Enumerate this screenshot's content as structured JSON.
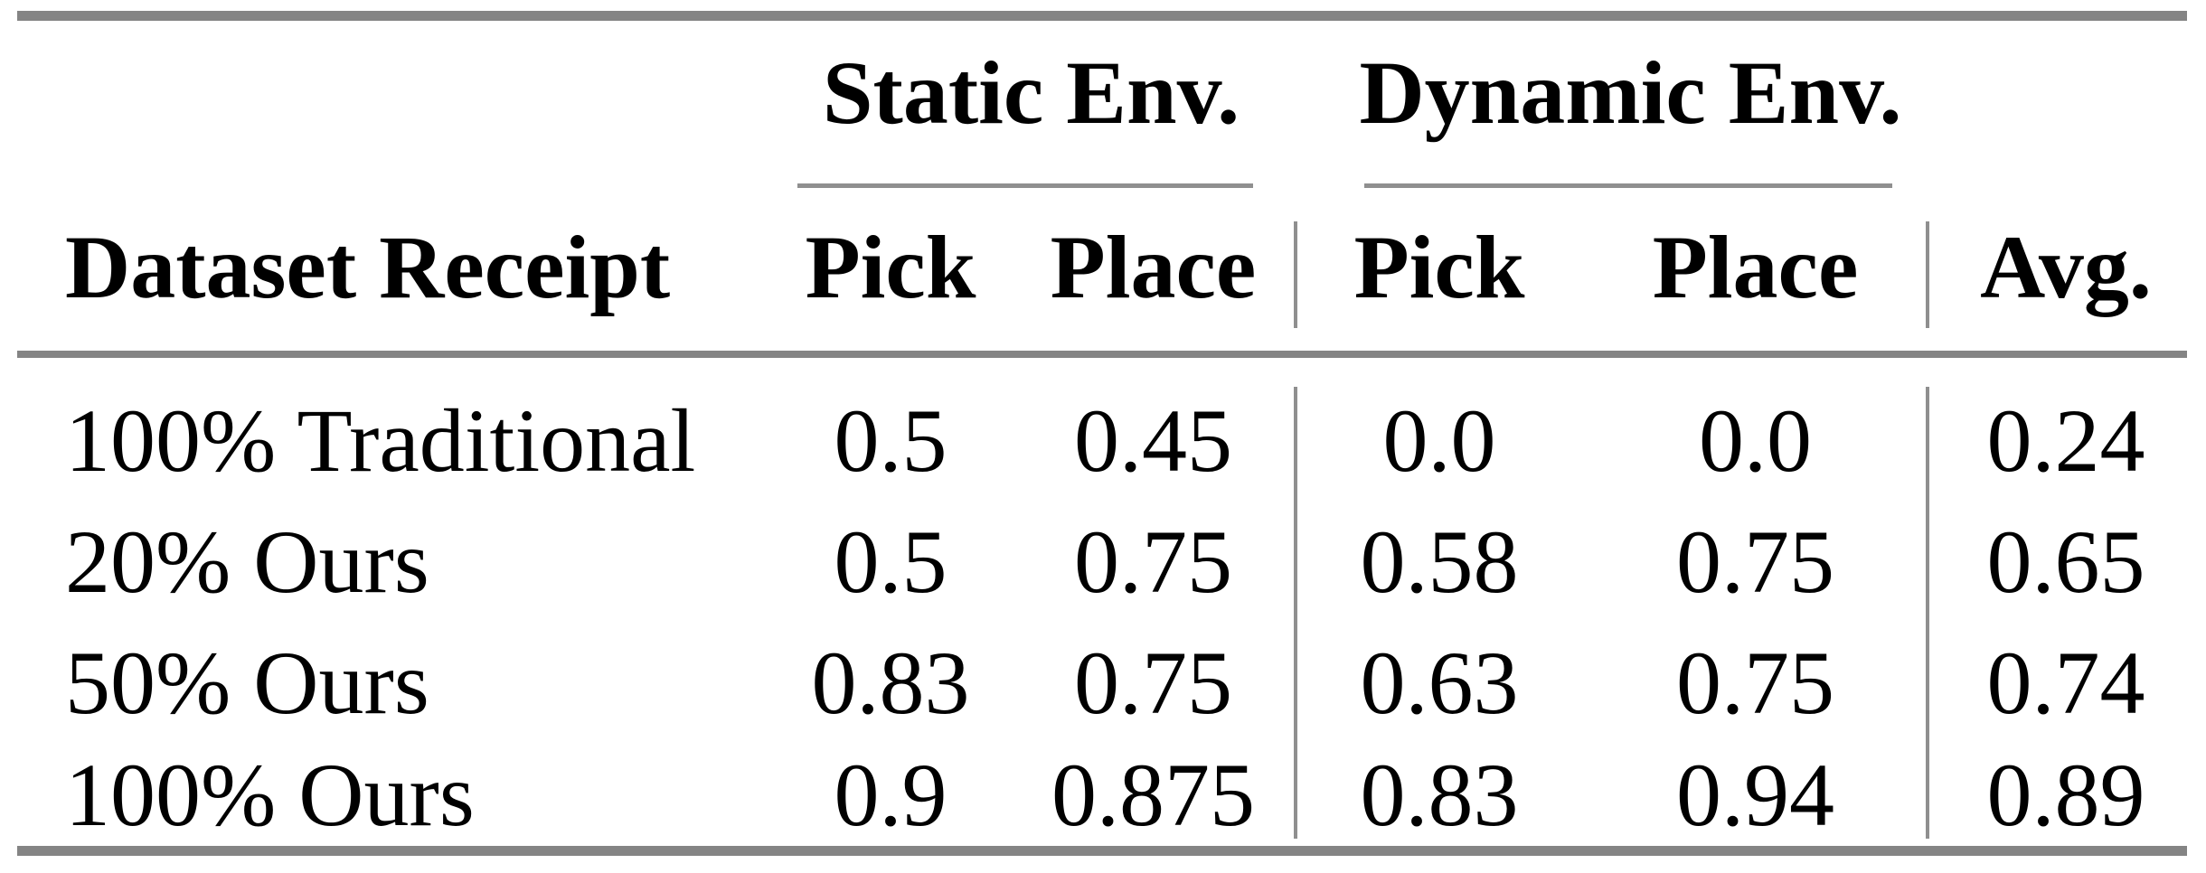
{
  "table": {
    "group_headers": [
      {
        "label": "Static Env."
      },
      {
        "label": "Dynamic Env."
      }
    ],
    "column_headers": {
      "row_label": "Dataset Receipt",
      "static_pick": "Pick",
      "static_place": "Place",
      "dynamic_pick": "Pick",
      "dynamic_place": "Place",
      "avg": "Avg."
    },
    "rows": [
      {
        "label": "100% Traditional",
        "static_pick": "0.5",
        "static_place": "0.45",
        "dynamic_pick": "0.0",
        "dynamic_place": "0.0",
        "avg": "0.24"
      },
      {
        "label": "20% Ours",
        "static_pick": "0.5",
        "static_place": "0.75",
        "dynamic_pick": "0.58",
        "dynamic_place": "0.75",
        "avg": "0.65"
      },
      {
        "label": "50% Ours",
        "static_pick": "0.83",
        "static_place": "0.75",
        "dynamic_pick": "0.63",
        "dynamic_place": "0.75",
        "avg": "0.74"
      },
      {
        "label": "100% Ours",
        "static_pick": "0.9",
        "static_place": "0.875",
        "dynamic_pick": "0.83",
        "dynamic_place": "0.94",
        "avg": "0.89"
      }
    ]
  },
  "colors": {
    "rule_thick": "#848484",
    "rule_thin": "#8f8f8f",
    "text": "#000000",
    "background": "#ffffff"
  },
  "chart_data": {
    "type": "table",
    "title": "",
    "columns": [
      "Dataset Receipt",
      "Static Env. Pick",
      "Static Env. Place",
      "Dynamic Env. Pick",
      "Dynamic Env. Place",
      "Avg."
    ],
    "rows": [
      [
        "100% Traditional",
        0.5,
        0.45,
        0.0,
        0.0,
        0.24
      ],
      [
        "20% Ours",
        0.5,
        0.75,
        0.58,
        0.75,
        0.65
      ],
      [
        "50% Ours",
        0.83,
        0.75,
        0.63,
        0.75,
        0.74
      ],
      [
        "100% Ours",
        0.9,
        0.875,
        0.83,
        0.94,
        0.89
      ]
    ]
  }
}
